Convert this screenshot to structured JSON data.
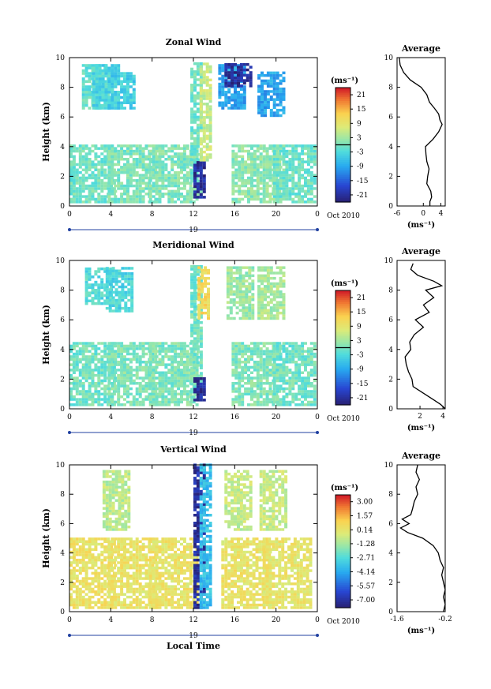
{
  "chart_data": [
    {
      "type": "heatmap",
      "title": "Zonal Wind",
      "xlabel": "",
      "ylabel": "Height (km)",
      "xlim": [
        0,
        24
      ],
      "ylim": [
        0,
        10
      ],
      "x_ticks": [
        "0",
        "4",
        "8",
        "12",
        "16",
        "20",
        "0"
      ],
      "y_ticks": [
        "0",
        "2",
        "4",
        "6",
        "8",
        "10"
      ],
      "date_day": "19",
      "date_label": "Oct 2010",
      "colorbar": {
        "unit": "(ms⁻¹)",
        "range": [
          -24,
          24
        ],
        "tick_labels": [
          "21",
          "15",
          "9",
          "3",
          "-3",
          "-9",
          "-15",
          "-21"
        ],
        "tick_values": [
          21,
          15,
          9,
          3,
          -3,
          -9,
          -15,
          -21
        ],
        "zero_line": 0
      },
      "features": [
        {
          "hour": 2,
          "from_km": 0,
          "to_km": 4,
          "value": 0
        },
        {
          "hour": 6,
          "from_km": 0,
          "to_km": 4,
          "value": 1
        },
        {
          "hour": 10,
          "from_km": 0,
          "to_km": 4,
          "value": 1
        },
        {
          "hour": 18,
          "from_km": 0,
          "to_km": 4,
          "value": 2
        },
        {
          "hour": 22,
          "from_km": 0,
          "to_km": 4,
          "value": 0
        },
        {
          "hour": 2.5,
          "from_km": 6.5,
          "to_km": 9.5,
          "value": -1
        },
        {
          "hour": 3.5,
          "from_km": 6.5,
          "to_km": 9.5,
          "value": -3
        },
        {
          "hour": 5,
          "from_km": 6.5,
          "to_km": 9,
          "value": -4
        },
        {
          "hour": 12.3,
          "from_km": 0.5,
          "to_km": 9.5,
          "value": 0
        },
        {
          "hour": 12.6,
          "from_km": 0.5,
          "to_km": 3,
          "value": -21
        },
        {
          "hour": 13.2,
          "from_km": 3,
          "to_km": 9.5,
          "value": 6
        },
        {
          "hour": 15.7,
          "from_km": 6.5,
          "to_km": 9.5,
          "value": -9
        },
        {
          "hour": 16.3,
          "from_km": 8,
          "to_km": 9.5,
          "value": -21
        },
        {
          "hour": 19.5,
          "from_km": 6,
          "to_km": 9,
          "value": -9
        }
      ],
      "average_panel": {
        "title": "Average",
        "xlabel": "(ms⁻¹)",
        "xlim": [
          -6,
          5
        ],
        "x_ticks": [
          "-6",
          "0",
          "4"
        ],
        "x_tick_values": [
          -6,
          0,
          4
        ],
        "ylim": [
          0,
          10
        ],
        "y_ticks": [
          "0",
          "2",
          "4",
          "6",
          "8",
          "10"
        ],
        "profile": {
          "height_km": [
            0.0,
            0.3,
            0.6,
            1.0,
            1.5,
            2.0,
            2.5,
            3.0,
            3.5,
            4.0,
            4.5,
            5.0,
            5.5,
            5.8,
            6.2,
            6.6,
            7.0,
            7.5,
            8.0,
            8.5,
            9.0,
            9.5,
            10.0
          ],
          "value": [
            1.5,
            1.5,
            1.9,
            1.7,
            0.8,
            1.0,
            1.3,
            0.8,
            0.6,
            0.5,
            2.2,
            3.5,
            4.3,
            3.8,
            3.5,
            2.5,
            1.4,
            0.8,
            -0.5,
            -3.0,
            -4.5,
            -5.3,
            -5.5
          ]
        }
      }
    },
    {
      "type": "heatmap",
      "title": "Meridional Wind",
      "xlabel": "",
      "ylabel": "Height (km)",
      "xlim": [
        0,
        24
      ],
      "ylim": [
        0,
        10
      ],
      "x_ticks": [
        "0",
        "4",
        "8",
        "12",
        "16",
        "20",
        "0"
      ],
      "y_ticks": [
        "0",
        "2",
        "4",
        "6",
        "8",
        "10"
      ],
      "date_day": "19",
      "date_label": "Oct 2010",
      "colorbar": {
        "unit": "(ms⁻¹)",
        "range": [
          -24,
          24
        ],
        "tick_labels": [
          "21",
          "15",
          "9",
          "3",
          "-3",
          "-9",
          "-15",
          "-21"
        ],
        "tick_values": [
          21,
          15,
          9,
          3,
          -3,
          -9,
          -15,
          -21
        ],
        "zero_line": 0
      },
      "features": [
        {
          "hour": 2,
          "from_km": 0,
          "to_km": 4.5,
          "value": 0
        },
        {
          "hour": 6,
          "from_km": 0,
          "to_km": 4.5,
          "value": 1
        },
        {
          "hour": 10,
          "from_km": 0,
          "to_km": 4.5,
          "value": 1
        },
        {
          "hour": 18,
          "from_km": 0,
          "to_km": 4.5,
          "value": 1
        },
        {
          "hour": 22,
          "from_km": 0,
          "to_km": 4.5,
          "value": 0
        },
        {
          "hour": 2.8,
          "from_km": 7,
          "to_km": 9.5,
          "value": -2
        },
        {
          "hour": 4.8,
          "from_km": 6.5,
          "to_km": 9.5,
          "value": -3
        },
        {
          "hour": 12.3,
          "from_km": 0.5,
          "to_km": 9.5,
          "value": 0
        },
        {
          "hour": 12.6,
          "from_km": 0.5,
          "to_km": 2,
          "value": -21
        },
        {
          "hour": 13.0,
          "from_km": 6,
          "to_km": 9.5,
          "value": 12
        },
        {
          "hour": 16.5,
          "from_km": 6,
          "to_km": 9.5,
          "value": 3
        },
        {
          "hour": 19.5,
          "from_km": 6,
          "to_km": 9.5,
          "value": 4
        }
      ],
      "average_panel": {
        "title": "Average",
        "xlabel": "(ms⁻¹)",
        "xlim": [
          0,
          4.2
        ],
        "x_ticks": [
          "2",
          "4"
        ],
        "x_tick_values": [
          2,
          4
        ],
        "ylim": [
          0,
          10
        ],
        "y_ticks": [
          "0",
          "2",
          "4",
          "6",
          "8",
          "10"
        ],
        "profile": {
          "height_km": [
            0.0,
            0.3,
            0.6,
            1.0,
            1.5,
            2.0,
            2.5,
            3.0,
            3.5,
            4.0,
            4.5,
            5.0,
            5.5,
            6.0,
            6.5,
            7.0,
            7.5,
            8.0,
            8.3,
            8.6,
            9.0,
            9.4,
            9.8
          ],
          "value": [
            4.2,
            3.8,
            3.2,
            2.4,
            1.4,
            1.3,
            1.0,
            0.8,
            0.7,
            1.2,
            1.1,
            1.5,
            2.3,
            1.6,
            2.8,
            2.3,
            3.2,
            2.5,
            3.9,
            3.2,
            1.8,
            1.2,
            1.4
          ]
        }
      }
    },
    {
      "type": "heatmap",
      "title": "Vertical Wind",
      "xlabel": "Local Time",
      "ylabel": "Height (km)",
      "xlim": [
        0,
        24
      ],
      "ylim": [
        0,
        10
      ],
      "x_ticks": [
        "0",
        "4",
        "8",
        "12",
        "16",
        "20",
        "0"
      ],
      "y_ticks": [
        "0",
        "2",
        "4",
        "6",
        "8",
        "10"
      ],
      "date_day": "19",
      "date_label": "Oct 2010",
      "colorbar": {
        "unit": "(ms⁻¹)",
        "range": [
          -7.8,
          3.7
        ],
        "tick_labels": [
          "3.00",
          "1.57",
          "0.14",
          "-1.28",
          "-2.71",
          "-4.14",
          "-5.57",
          "-7.00"
        ],
        "tick_values": [
          3.0,
          1.57,
          0.14,
          -1.28,
          -2.71,
          -4.14,
          -5.57,
          -7.0
        ]
      },
      "features": [
        {
          "hour": 2,
          "from_km": 0,
          "to_km": 5,
          "value": 0.4
        },
        {
          "hour": 6,
          "from_km": 0,
          "to_km": 5,
          "value": 0.3
        },
        {
          "hour": 10,
          "from_km": 0,
          "to_km": 5,
          "value": 0.3
        },
        {
          "hour": 17,
          "from_km": 0,
          "to_km": 5,
          "value": 0.3
        },
        {
          "hour": 21,
          "from_km": 0,
          "to_km": 5,
          "value": 0.2
        },
        {
          "hour": 4.5,
          "from_km": 5.5,
          "to_km": 9.5,
          "value": -0.8
        },
        {
          "hour": 16.3,
          "from_km": 5.5,
          "to_km": 9.5,
          "value": -0.6
        },
        {
          "hour": 19.7,
          "from_km": 5.5,
          "to_km": 9.5,
          "value": -0.6
        },
        {
          "hour": 12.6,
          "from_km": 0,
          "to_km": 10,
          "value": -7.0
        },
        {
          "hour": 13.2,
          "from_km": 0,
          "to_km": 10,
          "value": -3.5
        }
      ],
      "average_panel": {
        "title": "Average",
        "xlabel": "(ms⁻¹)",
        "xlim": [
          -1.6,
          -0.2
        ],
        "x_ticks": [
          "-1.6",
          "-0.2"
        ],
        "x_tick_values": [
          -1.6,
          -0.2
        ],
        "ylim": [
          0,
          10
        ],
        "y_ticks": [
          "0",
          "2",
          "4",
          "6",
          "8",
          "10"
        ],
        "profile": {
          "height_km": [
            0.0,
            0.5,
            1.0,
            1.5,
            2.0,
            2.5,
            3.0,
            3.5,
            4.0,
            4.5,
            5.0,
            5.4,
            5.7,
            6.0,
            6.3,
            6.6,
            7.0,
            7.5,
            8.0,
            8.5,
            9.0,
            9.5,
            10.0
          ],
          "value": [
            -0.25,
            -0.2,
            -0.25,
            -0.2,
            -0.25,
            -0.3,
            -0.25,
            -0.35,
            -0.4,
            -0.55,
            -0.85,
            -1.3,
            -1.5,
            -1.25,
            -1.45,
            -1.2,
            -1.15,
            -1.1,
            -1.0,
            -1.05,
            -0.95,
            -1.05,
            -1.0
          ]
        }
      }
    }
  ]
}
